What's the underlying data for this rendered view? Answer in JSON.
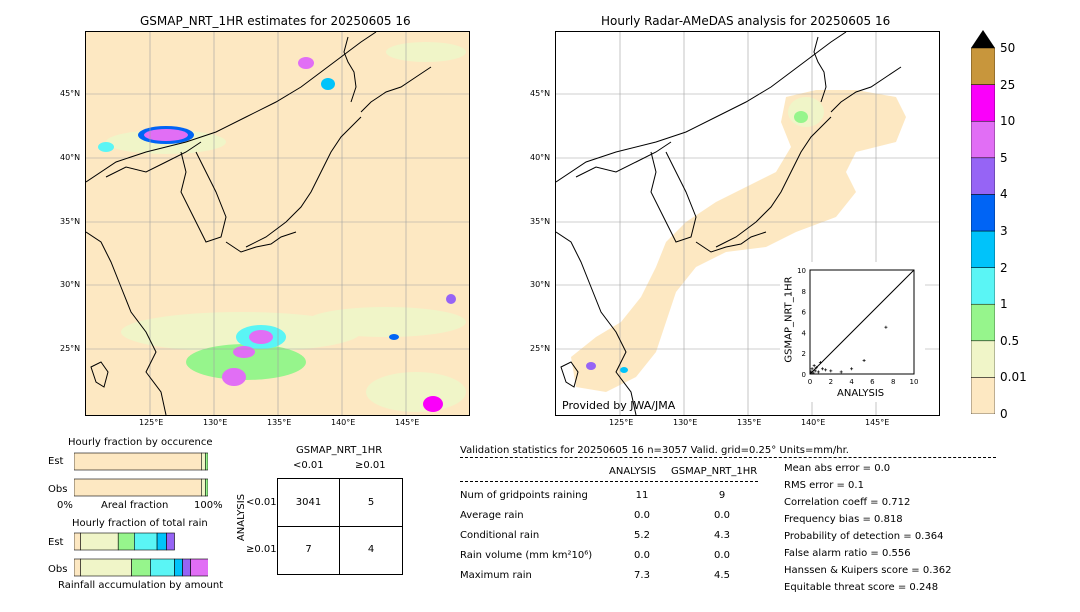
{
  "left_map": {
    "title": "GSMAP_NRT_1HR estimates for 20250605 16",
    "lat_labels": [
      "45°N",
      "40°N",
      "35°N",
      "30°N",
      "25°N"
    ],
    "lon_labels": [
      "125°E",
      "130°E",
      "135°E",
      "140°E",
      "145°E"
    ]
  },
  "right_map": {
    "title": "Hourly Radar-AMeDAS analysis for 20250605 16",
    "lat_labels": [
      "45°N",
      "40°N",
      "35°N",
      "30°N",
      "25°N"
    ],
    "lon_labels": [
      "125°E",
      "130°E",
      "135°E",
      "140°E",
      "145°E"
    ],
    "credit": "Provided by JWA/JMA"
  },
  "colorbar": {
    "labels": [
      "0",
      "0.01",
      "0.5",
      "1",
      "2",
      "3",
      "4",
      "5",
      "10",
      "25",
      "50"
    ],
    "colors": [
      "#fde8c2",
      "#f0f5c8",
      "#96f58c",
      "#5af5f5",
      "#00c3fa",
      "#0064f5",
      "#9664f5",
      "#e16ef5",
      "#fa00fa",
      "#c8963c"
    ]
  },
  "chart_data": [
    {
      "type": "scatter",
      "title": "",
      "xlabel": "ANALYSIS",
      "ylabel": "GSMAP_NRT_1HR",
      "xlim": [
        0,
        10
      ],
      "ylim": [
        0,
        10
      ],
      "ticks": [
        "0",
        "2",
        "4",
        "6",
        "8",
        "10"
      ],
      "points": [
        [
          0.1,
          0.2
        ],
        [
          0.2,
          0.5
        ],
        [
          0.3,
          0.1
        ],
        [
          0.4,
          0.8
        ],
        [
          0.5,
          0.3
        ],
        [
          0.6,
          0.6
        ],
        [
          0.8,
          0.2
        ],
        [
          1.0,
          1.1
        ],
        [
          1.2,
          0.5
        ],
        [
          1.5,
          0.4
        ],
        [
          2.0,
          0.3
        ],
        [
          3.0,
          0.2
        ],
        [
          4.0,
          0.5
        ],
        [
          5.2,
          1.3
        ],
        [
          7.3,
          4.5
        ]
      ]
    },
    {
      "type": "bar",
      "title": "Hourly fraction by occurence",
      "categories": [
        "Est",
        "Obs"
      ],
      "xlabel": "Areal fraction",
      "ticks": [
        "0%",
        "100%"
      ],
      "series": [
        {
          "values": [
            0.95,
            0.95
          ],
          "color": "#fde8c2"
        },
        {
          "values": [
            0.03,
            0.03
          ],
          "color": "#f0f5c8"
        },
        {
          "values": [
            0.02,
            0.02
          ],
          "color": "#96f58c"
        }
      ]
    },
    {
      "type": "bar",
      "title": "Hourly fraction of total rain",
      "categories": [
        "Est",
        "Obs"
      ],
      "xlabel": "Rainfall accumulation by amount",
      "series": [
        {
          "values": [
            0.05,
            0.05
          ],
          "color": "#fde8c2"
        },
        {
          "values": [
            0.28,
            0.38
          ],
          "color": "#f0f5c8"
        },
        {
          "values": [
            0.12,
            0.14
          ],
          "color": "#96f58c"
        },
        {
          "values": [
            0.17,
            0.18
          ],
          "color": "#5af5f5"
        },
        {
          "values": [
            0.07,
            0.06
          ],
          "color": "#00c3fa"
        },
        {
          "values": [
            0.06,
            0.06
          ],
          "color": "#9664f5"
        },
        {
          "values": [
            0.0,
            0.23
          ],
          "color": "#e16ef5"
        }
      ]
    },
    {
      "type": "table",
      "title": "GSMAP_NRT_1HR",
      "col_headers": [
        "<0.01",
        "≥0.01"
      ],
      "row_axis_label": "ANALYSIS",
      "row_headers": [
        "<0.01",
        "≥0.01"
      ],
      "cells": [
        [
          "3041",
          "5"
        ],
        [
          "7",
          "4"
        ]
      ]
    }
  ],
  "validation": {
    "header": "Validation statistics for 20250605 16  n=3057 Valid. grid=0.25° Units=mm/hr.",
    "col_analysis": "ANALYSIS",
    "col_gsmap": "GSMAP_NRT_1HR",
    "rows": [
      {
        "label": "Num of gridpoints raining",
        "analysis": "11",
        "gsmap": "9"
      },
      {
        "label": "Average rain",
        "analysis": "0.0",
        "gsmap": "0.0"
      },
      {
        "label": "Conditional rain",
        "analysis": "5.2",
        "gsmap": "4.3"
      },
      {
        "label": "Rain volume (mm km²10⁶)",
        "analysis": "0.0",
        "gsmap": "0.0"
      },
      {
        "label": "Maximum rain",
        "analysis": "7.3",
        "gsmap": "4.5"
      }
    ],
    "scores": [
      "Mean abs error =    0.0",
      "RMS error =    0.1",
      "Correlation coeff =  0.712",
      "Frequency bias =  0.818",
      "Probability of detection =  0.364",
      "False alarm ratio =  0.556",
      "Hanssen & Kuipers score =  0.362",
      "Equitable threat score =  0.248"
    ]
  }
}
